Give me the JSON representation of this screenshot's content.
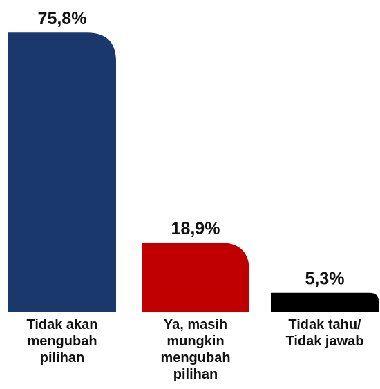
{
  "chart_data": {
    "type": "bar",
    "categories": [
      "Tidak akan mengubah pilihan",
      "Ya, masih mungkin mengubah pilihan",
      "Tidak tahu/ Tidak jawab"
    ],
    "values": [
      75.8,
      18.9,
      5.3
    ],
    "value_labels": [
      "75,8%",
      "18,9%",
      "5,3%"
    ],
    "colors": [
      "#1b386c",
      "#c00000",
      "#000000"
    ]
  }
}
